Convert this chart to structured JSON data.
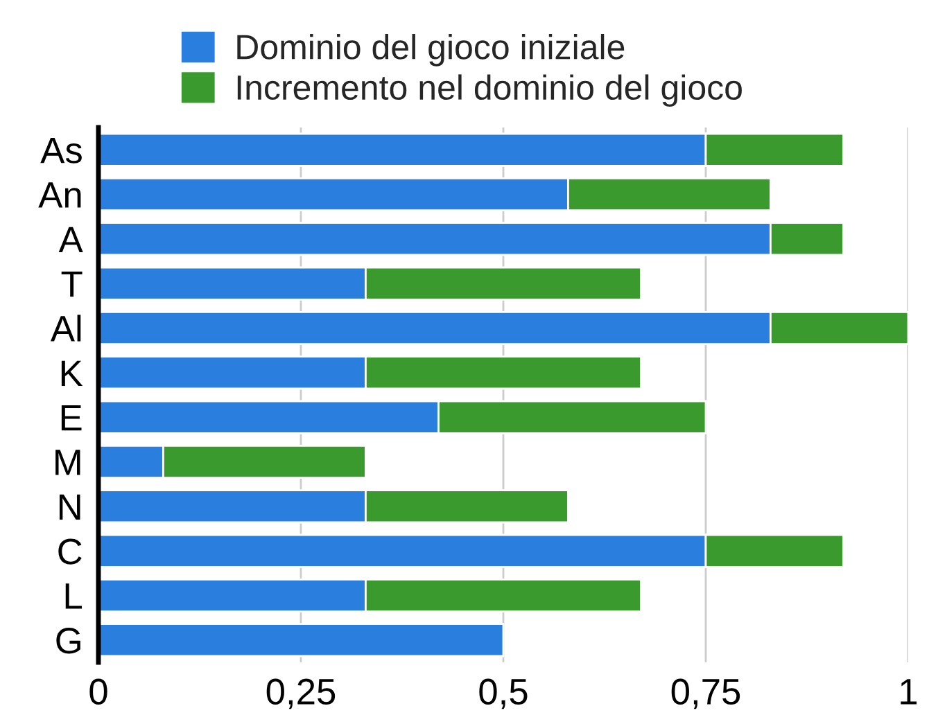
{
  "chart_data": {
    "type": "bar",
    "orientation": "horizontal",
    "stacked": true,
    "categories": [
      "As",
      "An",
      "A",
      "T",
      "Al",
      "K",
      "E",
      "M",
      "N",
      "C",
      "L",
      "G"
    ],
    "series": [
      {
        "name": "Dominio del gioco iniziale",
        "color": "#2a7fde",
        "values": [
          0.75,
          0.58,
          0.83,
          0.33,
          0.83,
          0.33,
          0.42,
          0.08,
          0.33,
          0.75,
          0.33,
          0.5
        ]
      },
      {
        "name": "Incremento nel dominio del gioco",
        "color": "#3a9a2e",
        "values": [
          0.17,
          0.25,
          0.09,
          0.34,
          0.17,
          0.34,
          0.33,
          0.25,
          0.25,
          0.17,
          0.34,
          null
        ]
      }
    ],
    "xlim": [
      0,
      1
    ],
    "xticks": [
      0,
      {
        "value": 0.25,
        "label": "0,25"
      },
      {
        "value": 0.5,
        "label": "0,5"
      },
      {
        "value": 0.75,
        "label": "0,75"
      },
      1
    ],
    "grid": "x",
    "legend": "top"
  }
}
